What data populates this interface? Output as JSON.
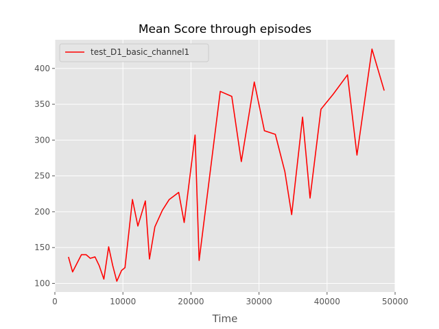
{
  "chart_data": {
    "type": "line",
    "title": "Mean Score through episodes",
    "xlabel": "Time",
    "ylabel": "",
    "xlim": [
      0,
      50000
    ],
    "ylim": [
      88,
      440
    ],
    "x_ticks": [
      0,
      10000,
      20000,
      30000,
      40000,
      50000
    ],
    "y_ticks": [
      100,
      150,
      200,
      250,
      300,
      350,
      400
    ],
    "grid": true,
    "legend_position": "top-left",
    "series": [
      {
        "name": "test_D1_basic_channel1",
        "color": "#ff0000",
        "x": [
          2000,
          2600,
          3900,
          4600,
          5200,
          5900,
          6500,
          7200,
          7900,
          8500,
          9100,
          9800,
          10300,
          11400,
          12200,
          13300,
          13900,
          14700,
          15800,
          16800,
          18200,
          19000,
          20600,
          21200,
          24300,
          26000,
          27400,
          29300,
          30800,
          32400,
          33800,
          34800,
          36400,
          37500,
          39100,
          40900,
          43000,
          44400,
          46600,
          48400
        ],
        "y": [
          137,
          116,
          140,
          140,
          135,
          137,
          125,
          106,
          151,
          125,
          103,
          118,
          122,
          217,
          180,
          215,
          134,
          179,
          202,
          217,
          227,
          185,
          307,
          132,
          368,
          361,
          270,
          381,
          313,
          308,
          256,
          196,
          332,
          219,
          343,
          364,
          391,
          279,
          427,
          369
        ]
      }
    ]
  }
}
